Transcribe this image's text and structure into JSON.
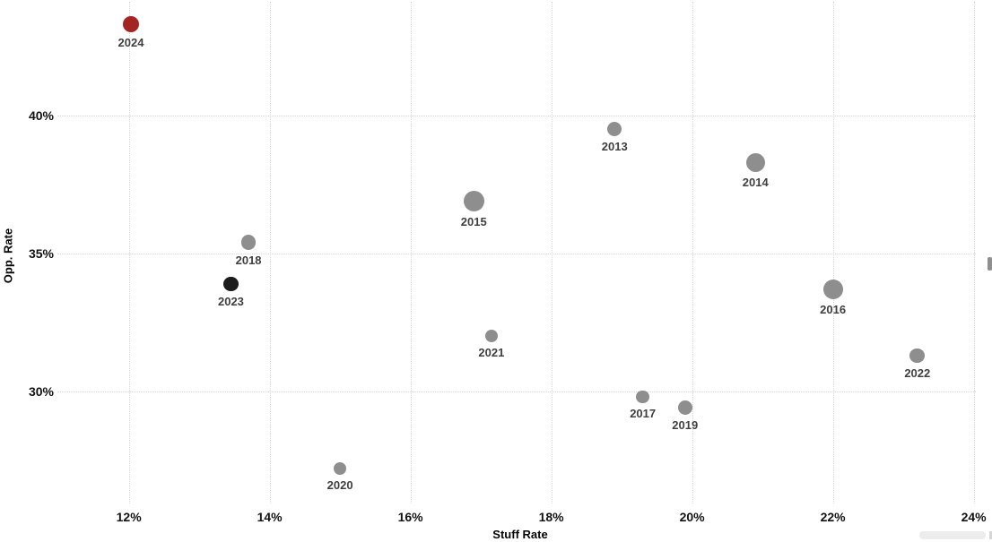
{
  "chart_data": {
    "type": "scatter",
    "title": "",
    "xlabel": "Stuff Rate",
    "ylabel": "Opp. Rate",
    "x_ticks": [
      {
        "value": 12,
        "label": "12%"
      },
      {
        "value": 14,
        "label": "14%"
      },
      {
        "value": 16,
        "label": "16%"
      },
      {
        "value": 18,
        "label": "18%"
      },
      {
        "value": 20,
        "label": "20%"
      },
      {
        "value": 22,
        "label": "22%"
      },
      {
        "value": 24,
        "label": "24%"
      }
    ],
    "y_ticks": [
      {
        "value": 30,
        "label": "30%"
      },
      {
        "value": 35,
        "label": "35%"
      },
      {
        "value": 40,
        "label": "40%"
      }
    ],
    "xlim": [
      10.17,
      24.26
    ],
    "ylim": [
      25.84,
      44.19
    ],
    "grid": "dotted",
    "legend_position": "none",
    "points": [
      {
        "label": "2013",
        "x": 18.9,
        "y": 39.5,
        "r": 8,
        "color_key": "gray"
      },
      {
        "label": "2014",
        "x": 20.9,
        "y": 38.3,
        "r": 10.5,
        "color_key": "gray"
      },
      {
        "label": "2015",
        "x": 16.9,
        "y": 36.9,
        "r": 11.5,
        "color_key": "gray"
      },
      {
        "label": "2016",
        "x": 22.0,
        "y": 33.7,
        "r": 11,
        "color_key": "gray"
      },
      {
        "label": "2017",
        "x": 19.3,
        "y": 29.8,
        "r": 7.3,
        "color_key": "gray"
      },
      {
        "label": "2018",
        "x": 13.7,
        "y": 35.4,
        "r": 8.3,
        "color_key": "gray"
      },
      {
        "label": "2019",
        "x": 19.9,
        "y": 29.4,
        "r": 8,
        "color_key": "gray"
      },
      {
        "label": "2020",
        "x": 15.0,
        "y": 27.2,
        "r": 7,
        "color_key": "gray"
      },
      {
        "label": "2021",
        "x": 17.15,
        "y": 32.0,
        "r": 7,
        "color_key": "gray"
      },
      {
        "label": "2022",
        "x": 23.2,
        "y": 31.3,
        "r": 8.3,
        "color_key": "gray"
      },
      {
        "label": "2023",
        "x": 13.45,
        "y": 33.9,
        "r": 8.3,
        "color_key": "black"
      },
      {
        "label": "2024",
        "x": 12.03,
        "y": 43.3,
        "r": 9,
        "color_key": "red"
      }
    ],
    "colors": {
      "gray": "#8E8E8E",
      "black": "#1C1C1C",
      "red": "#A32421",
      "grid": "#D8D8D8",
      "tick_label": "#121212",
      "point_label": "#3F3F3F",
      "axis_title": "#050505"
    }
  }
}
